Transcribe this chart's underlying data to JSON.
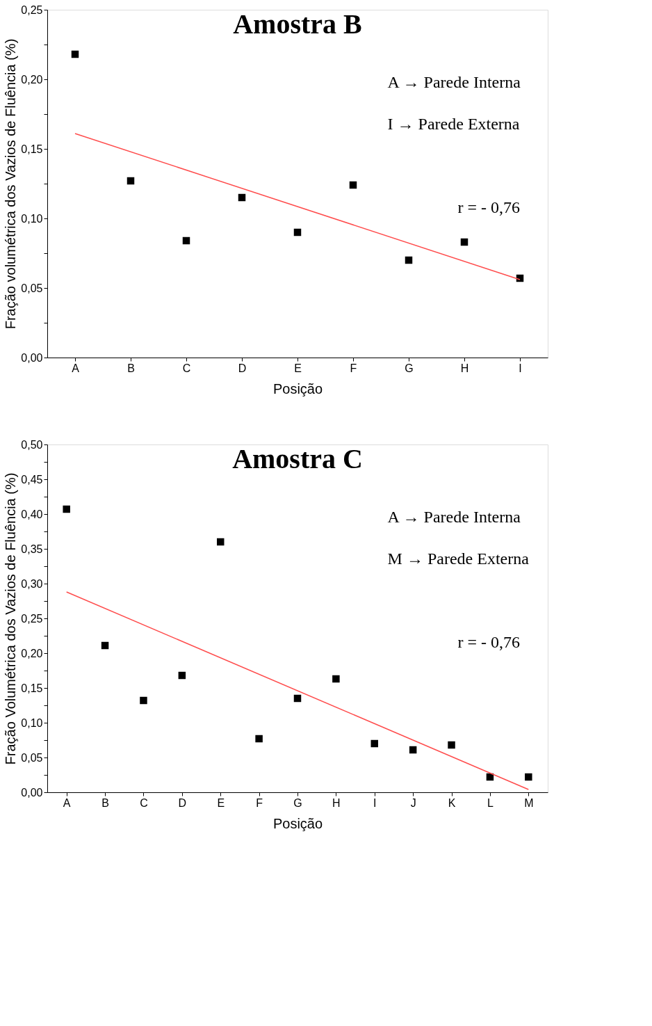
{
  "chart_data": [
    {
      "type": "scatter",
      "title": "Amostra B",
      "xlabel": "Posição",
      "ylabel": "Fração volumétrica dos Vazios de Fluência (%)",
      "categories": [
        "A",
        "B",
        "C",
        "D",
        "E",
        "F",
        "G",
        "H",
        "I"
      ],
      "ylim": [
        0,
        0.25
      ],
      "yticks": [
        {
          "value": 0,
          "label": "0,00"
        },
        {
          "value": 0.025,
          "label": null
        },
        {
          "value": 0.05,
          "label": "0,05"
        },
        {
          "value": 0.075,
          "label": null
        },
        {
          "value": 0.1,
          "label": "0,10"
        },
        {
          "value": 0.125,
          "label": null
        },
        {
          "value": 0.15,
          "label": "0,15"
        },
        {
          "value": 0.175,
          "label": null
        },
        {
          "value": 0.2,
          "label": "0,20"
        },
        {
          "value": 0.225,
          "label": null
        },
        {
          "value": 0.25,
          "label": "0,25"
        }
      ],
      "series": [
        {
          "color": "#000000",
          "marker": "square",
          "values": [
            0.218,
            0.127,
            0.084,
            0.115,
            0.09,
            0.124,
            0.07,
            0.083,
            0.057
          ]
        },
        {
          "type": "line",
          "color": "#ff4d4d",
          "marker": "none",
          "x": [
            "A",
            "I"
          ],
          "values": [
            0.161,
            0.056
          ]
        }
      ],
      "grid": false,
      "annotations": [
        "A → Parede Interna",
        "I → Parede Externa",
        "r = - 0,76"
      ]
    },
    {
      "type": "scatter",
      "title": "Amostra C",
      "xlabel": "Posição",
      "ylabel": "Fração Volumétrica dos Vazios de Fluência (%)",
      "categories": [
        "A",
        "B",
        "C",
        "D",
        "E",
        "F",
        "G",
        "H",
        "I",
        "J",
        "K",
        "L",
        "M"
      ],
      "ylim": [
        0,
        0.5
      ],
      "yticks": [
        {
          "value": 0,
          "label": "0,00"
        },
        {
          "value": 0.025,
          "label": null
        },
        {
          "value": 0.05,
          "label": "0,05"
        },
        {
          "value": 0.075,
          "label": null
        },
        {
          "value": 0.1,
          "label": "0,10"
        },
        {
          "value": 0.125,
          "label": null
        },
        {
          "value": 0.15,
          "label": "0,15"
        },
        {
          "value": 0.175,
          "label": null
        },
        {
          "value": 0.2,
          "label": "0,20"
        },
        {
          "value": 0.225,
          "label": null
        },
        {
          "value": 0.25,
          "label": "0,25"
        },
        {
          "value": 0.275,
          "label": null
        },
        {
          "value": 0.3,
          "label": "0,30"
        },
        {
          "value": 0.325,
          "label": null
        },
        {
          "value": 0.35,
          "label": "0,35"
        },
        {
          "value": 0.375,
          "label": null
        },
        {
          "value": 0.4,
          "label": "0,40"
        },
        {
          "value": 0.425,
          "label": null
        },
        {
          "value": 0.45,
          "label": "0,45"
        },
        {
          "value": 0.475,
          "label": null
        },
        {
          "value": 0.5,
          "label": "0,50"
        }
      ],
      "series": [
        {
          "color": "#000000",
          "marker": "square",
          "values": [
            0.407,
            0.211,
            0.132,
            0.168,
            0.36,
            0.077,
            0.135,
            0.163,
            0.07,
            0.061,
            0.068,
            0.022,
            0.022
          ]
        },
        {
          "type": "line",
          "color": "#ff4d4d",
          "marker": "none",
          "x": [
            "A",
            "M"
          ],
          "values": [
            0.288,
            0.004
          ]
        }
      ],
      "grid": false,
      "annotations": [
        "A → Parede Interna",
        "M → Parede Externa",
        "r = - 0,76"
      ]
    }
  ]
}
